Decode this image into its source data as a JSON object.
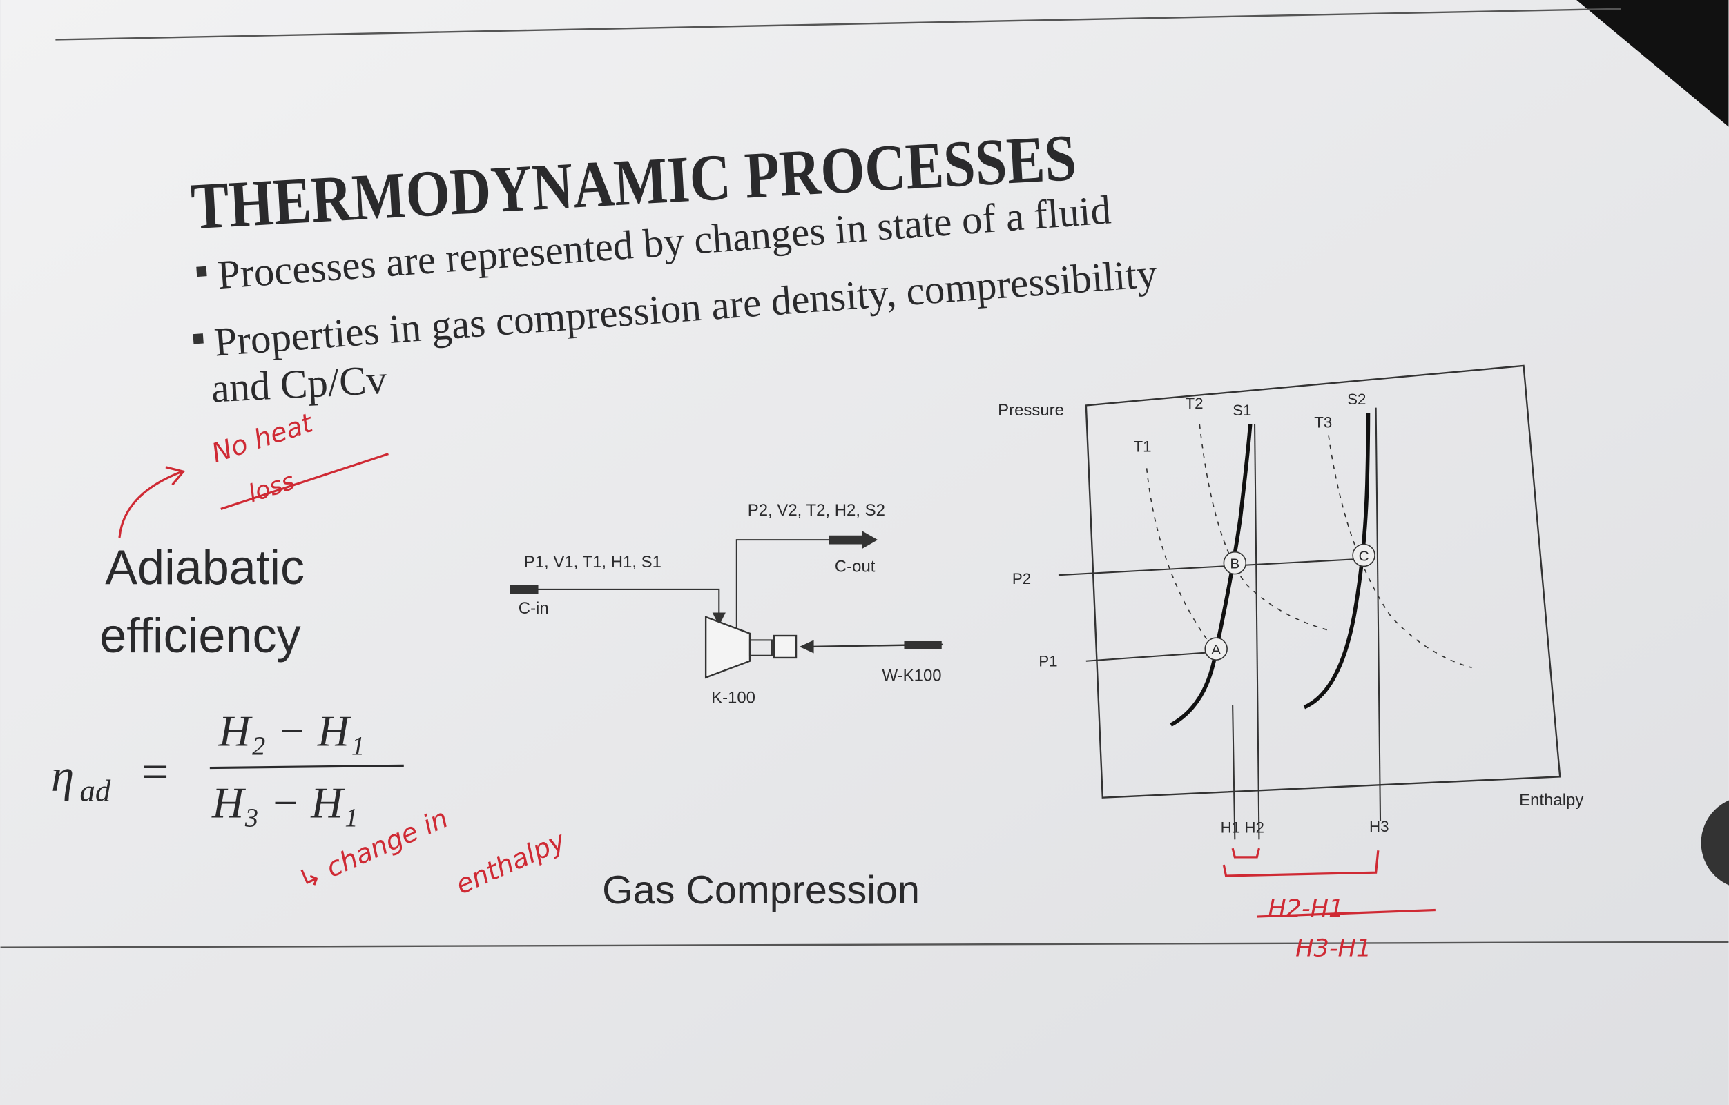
{
  "slide": {
    "title": "THERMODYNAMIC PROCESSES",
    "bullets": [
      [
        "Processes are represented by changes in state of a fluid"
      ],
      [
        "Properties in gas compression are density, compressibility",
        "and Cp/Cv"
      ]
    ],
    "term": [
      "Adiabatic",
      "efficiency"
    ],
    "formula": {
      "symbol": "η",
      "subscript": "ad",
      "equals": "=",
      "numerator": "H₂ − H₁",
      "denominator": "H₃ − H₁"
    },
    "caption": "Gas Compression"
  },
  "process_diagram": {
    "inlet_state": "P1, V1, T1, H1, S1",
    "inlet_stream": "C-in",
    "outlet_state": "P2, V2, T2, H2, S2",
    "outlet_stream": "C-out",
    "compressor": "K-100",
    "work_stream": "W-K100"
  },
  "ph_diagram": {
    "y_axis": "Pressure",
    "x_axis": "Enthalpy",
    "isotherms": [
      "T1",
      "T2",
      "T3"
    ],
    "isentropes": [
      "S1",
      "S2"
    ],
    "pressures": [
      "P1",
      "P2"
    ],
    "enthalpies": [
      "H1 H2",
      "H3"
    ],
    "points": [
      "A",
      "B",
      "C"
    ]
  },
  "handwriting": {
    "adiabatic_note": [
      "No heat",
      "loss"
    ],
    "formula_note": [
      "↳ change in",
      "enthalpy"
    ],
    "fraction": {
      "numerator": "H2-H1",
      "denominator": "H3-H1"
    }
  }
}
